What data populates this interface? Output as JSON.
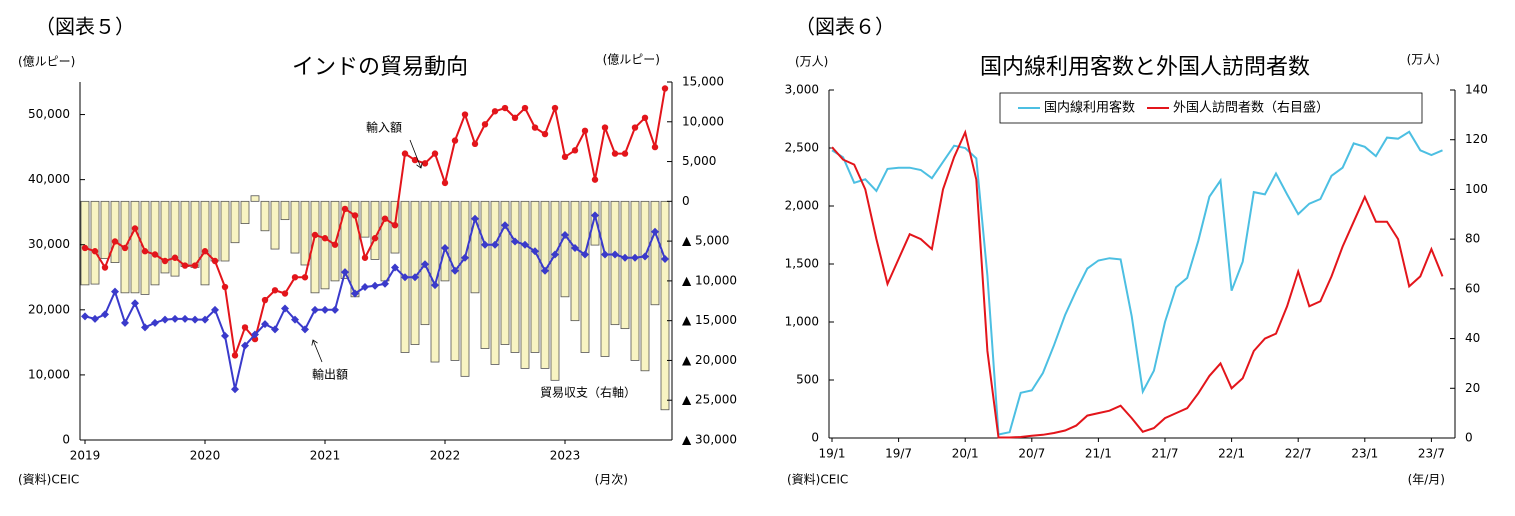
{
  "chart_data": [
    {
      "type": "combo",
      "label": "（図表５）",
      "title": "インドの貿易動向",
      "y_unit": "(億ルピー)",
      "y2_unit": "(億ルピー)",
      "x_unit": "(月次)",
      "source": "(資料)CEIC",
      "categories": [
        "2019",
        null,
        null,
        null,
        null,
        null,
        null,
        null,
        null,
        null,
        null,
        null,
        "2020",
        null,
        null,
        null,
        null,
        null,
        null,
        null,
        null,
        null,
        null,
        null,
        "2021",
        null,
        null,
        null,
        null,
        null,
        null,
        null,
        null,
        null,
        null,
        null,
        "2022",
        null,
        null,
        null,
        null,
        null,
        null,
        null,
        null,
        null,
        null,
        null,
        "2023",
        null,
        null,
        null,
        null,
        null,
        null,
        null,
        null,
        null,
        null
      ],
      "ylim": [
        0,
        55000
      ],
      "yticks": [
        0,
        {
          "value": 10000,
          "label": "10,000"
        },
        {
          "value": 20000,
          "label": "20,000"
        },
        {
          "value": 30000,
          "label": "30,000"
        },
        {
          "value": 40000,
          "label": "40,000"
        },
        {
          "value": 50000,
          "label": "50,000"
        }
      ],
      "y2lim": [
        -30000,
        15000
      ],
      "y2ticks": [
        {
          "value": 15000,
          "label": "15,000"
        },
        {
          "value": 10000,
          "label": "10,000"
        },
        {
          "value": 5000,
          "label": "5,000"
        },
        0,
        {
          "value": -5000,
          "label": "▲ 5,000"
        },
        {
          "value": -10000,
          "label": "▲ 10,000"
        },
        {
          "value": -15000,
          "label": "▲ 15,000"
        },
        {
          "value": -20000,
          "label": "▲ 20,000"
        },
        {
          "value": -25000,
          "label": "▲ 25,000"
        },
        {
          "value": -30000,
          "label": "▲ 30,000"
        }
      ],
      "series": [
        {
          "name": "貿易収支（右軸）",
          "type": "bar",
          "axis": "y2",
          "color": "#f8f4c2",
          "values": [
            -10500,
            -10400,
            -7200,
            -7700,
            -11500,
            -11500,
            -11700,
            -10500,
            -9000,
            -9400,
            -8200,
            -8300,
            -10500,
            -7500,
            -7500,
            -5200,
            -2800,
            700,
            -3700,
            -6000,
            -2300,
            -6500,
            -8000,
            -11500,
            -11000,
            -10000,
            -9700,
            -12000,
            -4500,
            -7300,
            -10000,
            -6500,
            -19000,
            -18000,
            -15500,
            -20200,
            -10000,
            -20000,
            -22000,
            -11500,
            -18500,
            -20500,
            -18000,
            -19000,
            -21000,
            -19000,
            -21000,
            -22500,
            -12000,
            -15000,
            -19000,
            -5500,
            -19500,
            -15500,
            -16000,
            -20000,
            -21300,
            -13000,
            -26200
          ]
        },
        {
          "name": "輸入額",
          "type": "line",
          "marker": "circle",
          "color": "#e3151b",
          "values": [
            29500,
            29000,
            26500,
            30500,
            29500,
            32500,
            29000,
            28500,
            27500,
            28000,
            26800,
            26800,
            29000,
            27500,
            23500,
            13000,
            17300,
            15500,
            21500,
            23000,
            22500,
            25000,
            25000,
            31500,
            31000,
            30000,
            35500,
            34500,
            28000,
            31000,
            34000,
            33000,
            44000,
            43000,
            42500,
            44000,
            39500,
            46000,
            50000,
            45500,
            48500,
            50500,
            51000,
            49500,
            51000,
            48000,
            47000,
            51000,
            43500,
            44500,
            47500,
            40000,
            48000,
            44000,
            44000,
            48000,
            49500,
            45000,
            54000
          ]
        },
        {
          "name": "輸出額",
          "type": "line",
          "marker": "diamond",
          "color": "#3a3acb",
          "values": [
            19000,
            18600,
            19300,
            22800,
            18000,
            21000,
            17300,
            18000,
            18500,
            18600,
            18600,
            18500,
            18500,
            20000,
            16000,
            7800,
            14500,
            16200,
            17800,
            17000,
            20200,
            18500,
            17000,
            20000,
            20000,
            20000,
            25800,
            22500,
            23500,
            23700,
            24000,
            26500,
            25000,
            25000,
            27000,
            23800,
            29500,
            26000,
            28000,
            34000,
            30000,
            30000,
            33000,
            30500,
            30000,
            29000,
            26000,
            28500,
            31500,
            29500,
            28500,
            34500,
            28500,
            28500,
            28000,
            28000,
            28200,
            32000,
            27800
          ]
        }
      ]
    },
    {
      "type": "line",
      "label": "（図表６）",
      "title": "国内線利用客数と外国人訪問者数",
      "y_unit": "(万人)",
      "y2_unit": "(万人)",
      "x_unit": "(年/月)",
      "source": "(資料)CEIC",
      "categories": [
        "19/1",
        null,
        null,
        null,
        null,
        null,
        "19/7",
        null,
        null,
        null,
        null,
        null,
        "20/1",
        null,
        null,
        null,
        null,
        null,
        "20/7",
        null,
        null,
        null,
        null,
        null,
        "21/1",
        null,
        null,
        null,
        null,
        null,
        "21/7",
        null,
        null,
        null,
        null,
        null,
        "22/1",
        null,
        null,
        null,
        null,
        null,
        "22/7",
        null,
        null,
        null,
        null,
        null,
        "23/1",
        null,
        null,
        null,
        null,
        null,
        "23/7",
        null
      ],
      "ylim": [
        0,
        3000
      ],
      "yticks": [
        0,
        500,
        {
          "value": 1000,
          "label": "1,000"
        },
        {
          "value": 1500,
          "label": "1,500"
        },
        {
          "value": 2000,
          "label": "2,000"
        },
        {
          "value": 2500,
          "label": "2,500"
        },
        {
          "value": 3000,
          "label": "3,000"
        }
      ],
      "y2lim": [
        0,
        140
      ],
      "y2ticks": [
        0,
        20,
        40,
        60,
        80,
        100,
        120,
        140
      ],
      "legend": "top-right",
      "series": [
        {
          "name": "国内線利用客数",
          "color": "#4cbfe2",
          "values": [
            2480,
            2420,
            2200,
            2230,
            2130,
            2320,
            2330,
            2330,
            2310,
            2240,
            2380,
            2520,
            2500,
            2410,
            1400,
            30,
            50,
            390,
            410,
            560,
            800,
            1060,
            1270,
            1460,
            1530,
            1550,
            1540,
            1050,
            400,
            580,
            1000,
            1300,
            1380,
            1700,
            2080,
            2220,
            1270,
            1520,
            2120,
            2100,
            2280,
            2100,
            1930,
            2020,
            2060,
            2260,
            2330,
            2540,
            2510,
            2430,
            2590,
            2580,
            2640,
            2480,
            2440,
            2480
          ]
        },
        {
          "name": "外国人訪問者数（右目盛）",
          "color": "#e3151b",
          "axis": "y2",
          "values": [
            117,
            112,
            110,
            100,
            80,
            62,
            72,
            82,
            80,
            76,
            100,
            113,
            123,
            104,
            35,
            0.2,
            0.2,
            0.4,
            0.9,
            1.3,
            2,
            3,
            5,
            9,
            10,
            11,
            13,
            8,
            2.5,
            4,
            8,
            10,
            12,
            18,
            25,
            30,
            20,
            24,
            35,
            40,
            42,
            53,
            67,
            53,
            55,
            65,
            77,
            87,
            97,
            87,
            87,
            80,
            61,
            65,
            76,
            65
          ]
        }
      ]
    }
  ]
}
